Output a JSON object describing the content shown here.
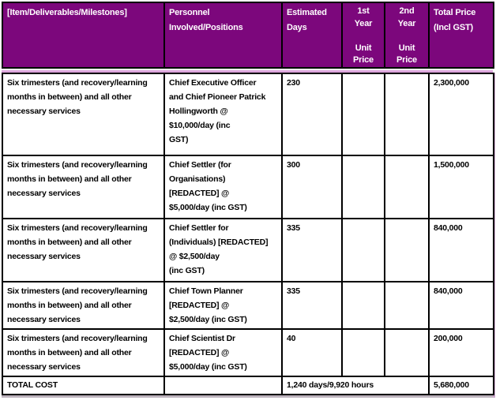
{
  "colors": {
    "header_bg": "#7C077C",
    "header_text": "#FFFFFF",
    "accent_line": "#DCA6DC",
    "grid": "#000000",
    "body_text": "#000000",
    "page_bg": "#FFFFFF"
  },
  "header": {
    "columns": [
      {
        "label": "[Item/Deliverables/Milestones]"
      },
      {
        "label": "Personnel\nInvolved/Positions"
      },
      {
        "label": "Estimated\nDays"
      },
      {
        "label": "1st\nYear\n\nUnit\nPrice"
      },
      {
        "label": "2nd\nYear\n\nUnit\nPrice"
      },
      {
        "label": "Total Price\n(Incl GST)"
      }
    ]
  },
  "rows": [
    {
      "item": "Six trimesters (and recovery/learning\nmonths in between) and all other\nnecessary services",
      "personnel": "Chief Executive Officer\nand Chief Pioneer Patrick\nHollingworth @\n$10,000/day (inc\nGST)",
      "estimated_days": "230",
      "first_year_unit_price": "",
      "second_year_unit_price": "",
      "total_price": "2,300,000"
    },
    {
      "item": "Six trimesters (and recovery/learning\nmonths in between) and all other\nnecessary services",
      "personnel": "Chief Settler (for\nOrganisations)\n[REDACTED] @\n$5,000/day (inc GST)",
      "estimated_days": "300",
      "first_year_unit_price": "",
      "second_year_unit_price": "",
      "total_price": "1,500,000"
    },
    {
      "item": "Six trimesters (and recovery/learning\nmonths in between) and all other\nnecessary services",
      "personnel": "Chief Settler for\n(Individuals) [REDACTED]\n@ $2,500/day\n(inc GST)",
      "estimated_days": "335",
      "first_year_unit_price": "",
      "second_year_unit_price": "",
      "total_price": "840,000"
    },
    {
      "item": "Six trimesters (and recovery/learning\nmonths in between) and all other\nnecessary services",
      "personnel": "Chief Town Planner\n[REDACTED] @\n$2,500/day (inc GST)",
      "estimated_days": "335",
      "first_year_unit_price": "",
      "second_year_unit_price": "",
      "total_price": "840,000"
    },
    {
      "item": "Six trimesters (and recovery/learning\nmonths in between) and all other\nnecessary services",
      "personnel": "Chief Scientist Dr\n[REDACTED] @\n$5,000/day (inc GST)",
      "estimated_days": "40",
      "first_year_unit_price": "",
      "second_year_unit_price": "",
      "total_price": "200,000"
    }
  ],
  "total_row": {
    "label": "TOTAL COST",
    "personnel": "",
    "combined_days_hours": "1,240 days/9,920 hours",
    "total_price": "5,680,000"
  }
}
